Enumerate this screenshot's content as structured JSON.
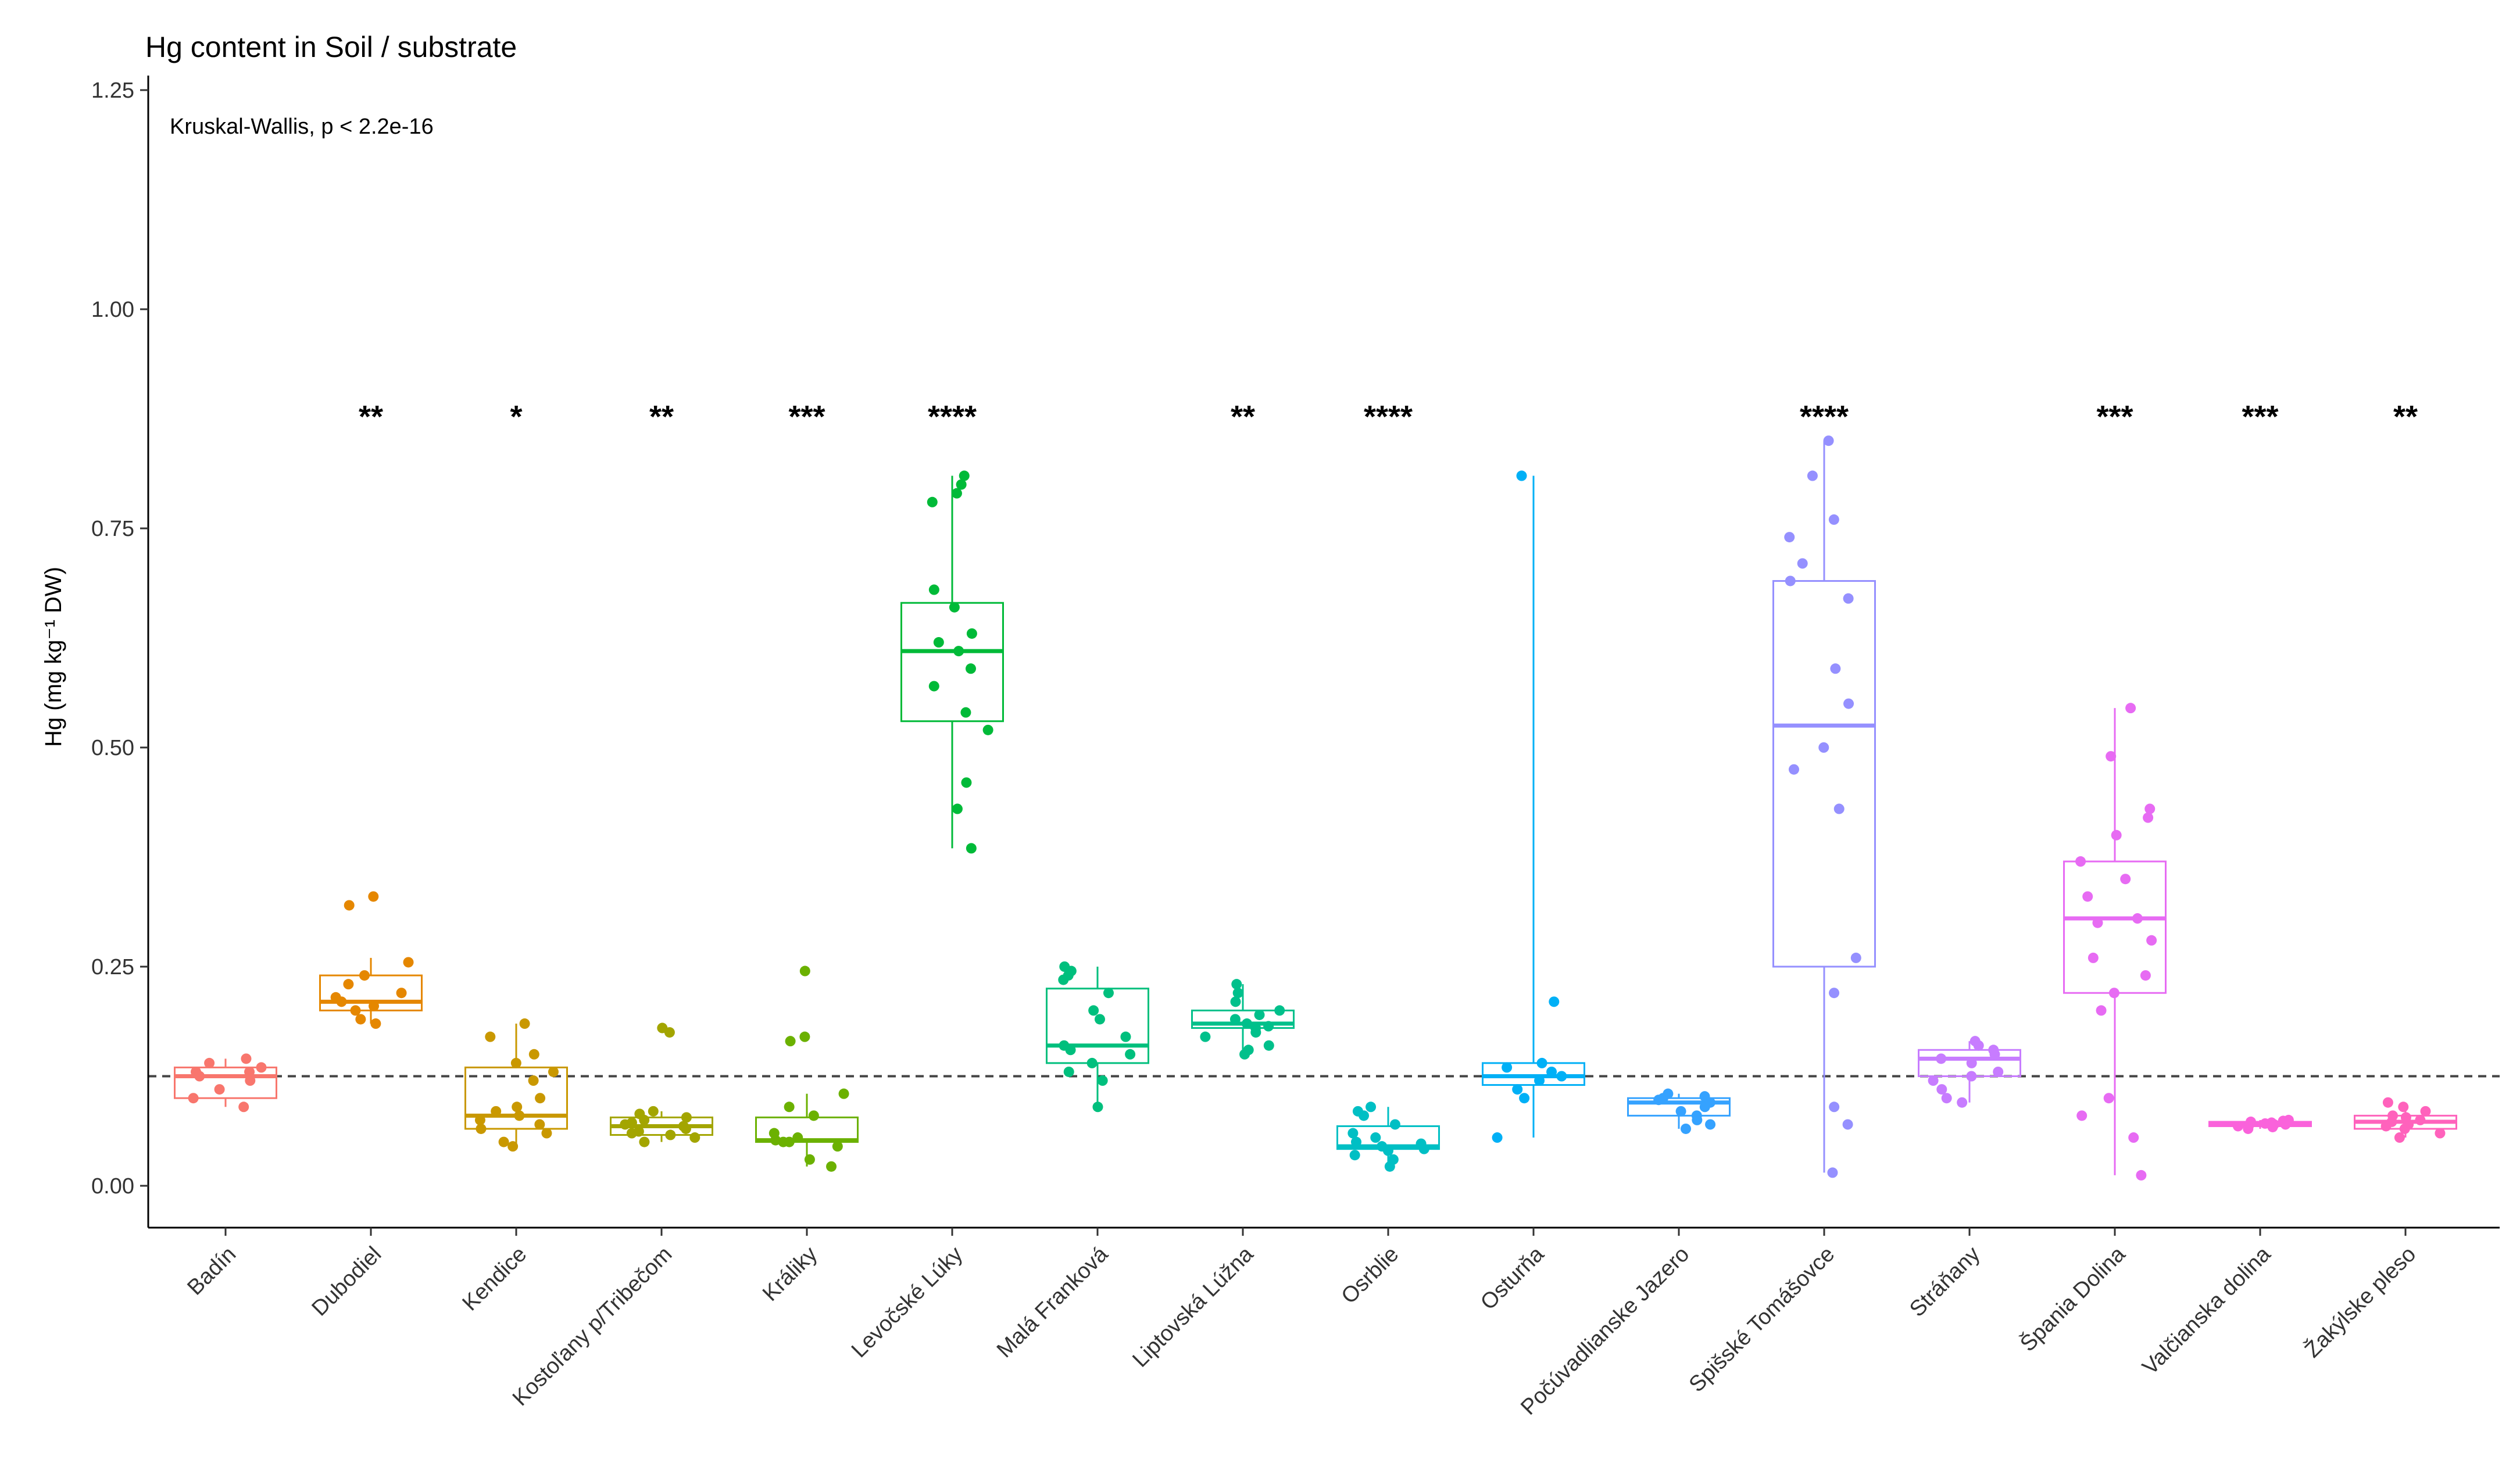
{
  "chart_data": {
    "type": "box",
    "title": "Hg content in Soil / substrate",
    "annotation": "Kruskal-Wallis, p < 2.2e-16",
    "ylabel": "Hg (mg kg⁻¹ DW)",
    "xlabel": "",
    "ylim": [
      -0.05,
      1.25
    ],
    "yticks": [
      "0.00",
      "0.25",
      "0.50",
      "0.75",
      "1.00",
      "1.25"
    ],
    "reference_line": 0.125,
    "groups": [
      {
        "name": "Badín",
        "color": "#F8766D",
        "q1": 0.1,
        "median": 0.125,
        "q3": 0.135,
        "wmin": 0.09,
        "wmax": 0.145,
        "sig": "",
        "points": [
          0.09,
          0.1,
          0.11,
          0.12,
          0.125,
          0.13,
          0.13,
          0.135,
          0.14,
          0.145
        ]
      },
      {
        "name": "Dubodiel",
        "color": "#E58700",
        "q1": 0.2,
        "median": 0.21,
        "q3": 0.24,
        "wmin": 0.185,
        "wmax": 0.26,
        "sig": "**",
        "points": [
          0.185,
          0.19,
          0.2,
          0.205,
          0.21,
          0.215,
          0.22,
          0.23,
          0.24,
          0.255,
          0.32,
          0.33
        ]
      },
      {
        "name": "Kendice",
        "color": "#C99800",
        "q1": 0.065,
        "median": 0.08,
        "q3": 0.135,
        "wmin": 0.045,
        "wmax": 0.185,
        "sig": "*",
        "points": [
          0.045,
          0.05,
          0.06,
          0.065,
          0.07,
          0.075,
          0.08,
          0.085,
          0.09,
          0.1,
          0.12,
          0.13,
          0.14,
          0.15,
          0.17,
          0.185
        ]
      },
      {
        "name": "Kostoľany p/Tribečom",
        "color": "#A3A500",
        "q1": 0.058,
        "median": 0.068,
        "q3": 0.078,
        "wmin": 0.05,
        "wmax": 0.085,
        "sig": "**",
        "points": [
          0.05,
          0.055,
          0.058,
          0.06,
          0.062,
          0.065,
          0.068,
          0.07,
          0.072,
          0.075,
          0.078,
          0.082,
          0.085,
          0.175,
          0.18
        ]
      },
      {
        "name": "Králiky",
        "color": "#6BB100",
        "q1": 0.05,
        "median": 0.052,
        "q3": 0.078,
        "wmin": 0.022,
        "wmax": 0.105,
        "sig": "***",
        "points": [
          0.022,
          0.03,
          0.045,
          0.05,
          0.05,
          0.052,
          0.055,
          0.06,
          0.08,
          0.09,
          0.105,
          0.165,
          0.17,
          0.245
        ]
      },
      {
        "name": "Levočské Lúky",
        "color": "#00BA38",
        "q1": 0.53,
        "median": 0.61,
        "q3": 0.665,
        "wmin": 0.385,
        "wmax": 0.81,
        "sig": "****",
        "points": [
          0.385,
          0.43,
          0.46,
          0.52,
          0.54,
          0.57,
          0.59,
          0.61,
          0.62,
          0.63,
          0.66,
          0.68,
          0.78,
          0.79,
          0.8,
          0.81
        ]
      },
      {
        "name": "Malá Franková",
        "color": "#00BF7D",
        "q1": 0.14,
        "median": 0.16,
        "q3": 0.225,
        "wmin": 0.09,
        "wmax": 0.25,
        "sig": "",
        "points": [
          0.09,
          0.12,
          0.13,
          0.14,
          0.15,
          0.155,
          0.16,
          0.17,
          0.19,
          0.2,
          0.22,
          0.235,
          0.24,
          0.245,
          0.25
        ]
      },
      {
        "name": "Liptovská Lúžna",
        "color": "#00C08B",
        "q1": 0.18,
        "median": 0.185,
        "q3": 0.2,
        "wmin": 0.15,
        "wmax": 0.23,
        "sig": "**",
        "points": [
          0.15,
          0.155,
          0.16,
          0.17,
          0.175,
          0.18,
          0.182,
          0.185,
          0.19,
          0.195,
          0.2,
          0.21,
          0.22,
          0.23
        ]
      },
      {
        "name": "Osrblie",
        "color": "#00BFC4",
        "q1": 0.042,
        "median": 0.045,
        "q3": 0.068,
        "wmin": 0.022,
        "wmax": 0.09,
        "sig": "****",
        "points": [
          0.022,
          0.03,
          0.035,
          0.04,
          0.042,
          0.045,
          0.048,
          0.05,
          0.055,
          0.06,
          0.07,
          0.08,
          0.085,
          0.09
        ]
      },
      {
        "name": "Osturňa",
        "color": "#00B0F6",
        "q1": 0.115,
        "median": 0.125,
        "q3": 0.14,
        "wmin": 0.055,
        "wmax": 0.81,
        "sig": "",
        "points": [
          0.055,
          0.1,
          0.11,
          0.12,
          0.125,
          0.13,
          0.135,
          0.14,
          0.21,
          0.81
        ]
      },
      {
        "name": "Počúvadlianske Jazero",
        "color": "#35A2FF",
        "q1": 0.08,
        "median": 0.095,
        "q3": 0.1,
        "wmin": 0.065,
        "wmax": 0.105,
        "sig": "",
        "points": [
          0.065,
          0.07,
          0.075,
          0.08,
          0.085,
          0.09,
          0.095,
          0.098,
          0.1,
          0.102,
          0.105
        ]
      },
      {
        "name": "Spišské Tomášovce",
        "color": "#9590FF",
        "q1": 0.25,
        "median": 0.525,
        "q3": 0.69,
        "wmin": 0.015,
        "wmax": 0.85,
        "sig": "****",
        "points": [
          0.015,
          0.07,
          0.09,
          0.22,
          0.26,
          0.43,
          0.475,
          0.5,
          0.55,
          0.59,
          0.67,
          0.69,
          0.71,
          0.74,
          0.76,
          0.81,
          0.85
        ]
      },
      {
        "name": "Stráňany",
        "color": "#C77CFF",
        "q1": 0.125,
        "median": 0.145,
        "q3": 0.155,
        "wmin": 0.095,
        "wmax": 0.165,
        "sig": "",
        "points": [
          0.095,
          0.1,
          0.11,
          0.12,
          0.125,
          0.13,
          0.14,
          0.145,
          0.15,
          0.155,
          0.16,
          0.165
        ]
      },
      {
        "name": "Špania Dolina",
        "color": "#E76BF3",
        "q1": 0.22,
        "median": 0.305,
        "q3": 0.37,
        "wmin": 0.012,
        "wmax": 0.545,
        "sig": "***",
        "points": [
          0.012,
          0.055,
          0.08,
          0.1,
          0.2,
          0.22,
          0.24,
          0.26,
          0.28,
          0.3,
          0.305,
          0.33,
          0.35,
          0.37,
          0.4,
          0.42,
          0.43,
          0.49,
          0.545
        ]
      },
      {
        "name": "Valčianska dolina",
        "color": "#FA62DB",
        "q1": 0.068,
        "median": 0.07,
        "q3": 0.073,
        "wmin": 0.065,
        "wmax": 0.075,
        "sig": "***",
        "points": [
          0.065,
          0.067,
          0.068,
          0.069,
          0.07,
          0.07,
          0.071,
          0.072,
          0.073,
          0.074,
          0.075
        ]
      },
      {
        "name": "Žakýlske pleso",
        "color": "#FF62BC",
        "q1": 0.065,
        "median": 0.073,
        "q3": 0.08,
        "wmin": 0.055,
        "wmax": 0.095,
        "sig": "**",
        "points": [
          0.055,
          0.06,
          0.065,
          0.068,
          0.07,
          0.073,
          0.075,
          0.078,
          0.08,
          0.085,
          0.09,
          0.095
        ]
      }
    ]
  }
}
